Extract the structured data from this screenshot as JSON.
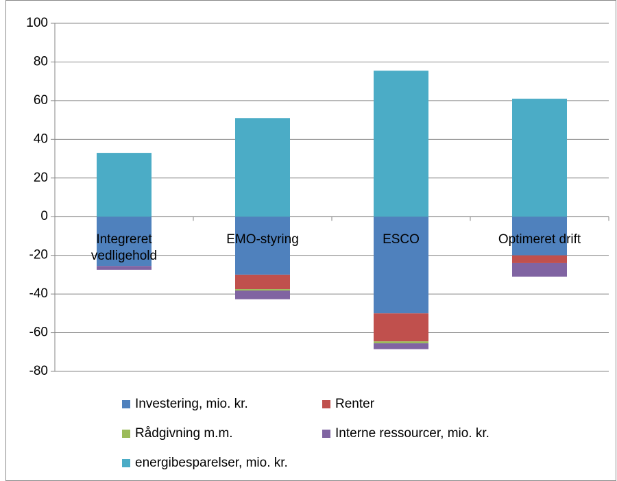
{
  "chart_data": {
    "type": "bar",
    "stacked": true,
    "categories": [
      "Integreret vedligehold",
      "EMO-styring",
      "ESCO",
      "Optimeret drift"
    ],
    "series": [
      {
        "name": "Investering, mio. kr.",
        "color": "#4f81bd",
        "values": [
          -25.5,
          -30,
          -50,
          -20
        ]
      },
      {
        "name": "Renter",
        "color": "#c0504d",
        "values": [
          0,
          -7.5,
          -14.5,
          -4
        ]
      },
      {
        "name": "Rådgivning m.m.",
        "color": "#9bbb59",
        "values": [
          0,
          -0.7,
          -1,
          0
        ]
      },
      {
        "name": "Interne ressourcer, mio. kr.",
        "color": "#8064a2",
        "values": [
          -2,
          -4.5,
          -3,
          -7
        ]
      },
      {
        "name": "energibesparelser, mio. kr.",
        "color": "#4bacc6",
        "values": [
          33,
          51,
          75.5,
          61
        ]
      }
    ],
    "ylim": [
      -80,
      100
    ],
    "yticks": [
      -80,
      -60,
      -40,
      -20,
      0,
      20,
      40,
      60,
      80,
      100
    ],
    "grid": true
  }
}
